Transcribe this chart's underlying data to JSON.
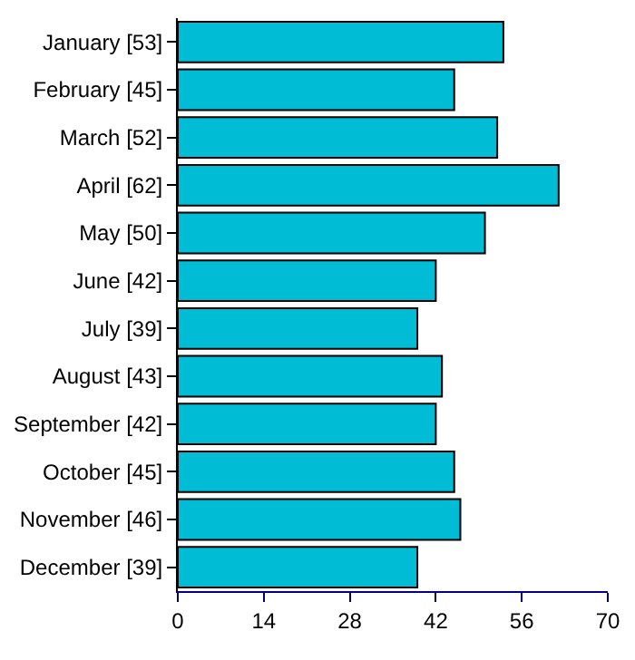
{
  "chart_data": {
    "type": "bar",
    "orientation": "horizontal",
    "categories": [
      "January [53]",
      "February [45]",
      "March [52]",
      "April [62]",
      "May [50]",
      "June [42]",
      "July [39]",
      "August [43]",
      "September [42]",
      "October [45]",
      "November [46]",
      "December [39]"
    ],
    "values": [
      53,
      45,
      52,
      62,
      50,
      42,
      39,
      43,
      42,
      45,
      46,
      39
    ],
    "color": "#00bcd4",
    "xlim": [
      0,
      70
    ],
    "xticks": [
      0,
      14,
      28,
      42,
      56,
      70
    ]
  }
}
